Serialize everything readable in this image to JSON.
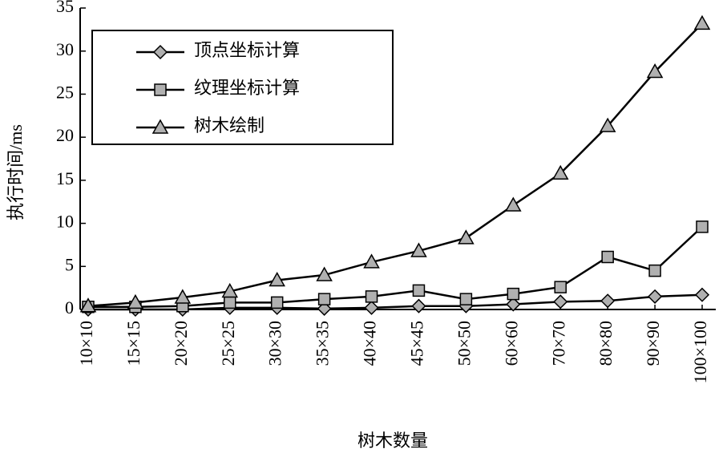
{
  "chart_data": {
    "type": "line",
    "x_label": "树木数量",
    "y_label": "执行时间/ms",
    "categories": [
      "10×10",
      "15×15",
      "20×20",
      "25×25",
      "30×30",
      "35×35",
      "40×40",
      "45×45",
      "50×50",
      "60×60",
      "70×70",
      "80×80",
      "90×90",
      "100×100"
    ],
    "series": [
      {
        "name": "顶点坐标计算",
        "color": "#b0b0b0",
        "marker": "diamond",
        "values": [
          0,
          0,
          0,
          0.2,
          0.2,
          0.1,
          0.2,
          0.4,
          0.4,
          0.6,
          0.9,
          1.0,
          1.5,
          1.7
        ]
      },
      {
        "name": "纹理坐标计算",
        "color": "#b0b0b0",
        "marker": "square",
        "values": [
          0.3,
          0.3,
          0.4,
          0.8,
          0.8,
          1.2,
          1.5,
          2.2,
          1.2,
          1.8,
          2.6,
          6.1,
          4.5,
          9.6
        ]
      },
      {
        "name": "树木绘制",
        "color": "#b0b0b0",
        "marker": "triangle",
        "values": [
          0.4,
          0.8,
          1.4,
          2.1,
          3.4,
          4.0,
          5.5,
          6.8,
          8.3,
          12.1,
          15.8,
          21.3,
          27.6,
          33.2
        ]
      }
    ],
    "ylim": [
      0,
      35
    ],
    "yticks": [
      0,
      5,
      10,
      15,
      20,
      25,
      30,
      35
    ],
    "legend": "upper left"
  }
}
